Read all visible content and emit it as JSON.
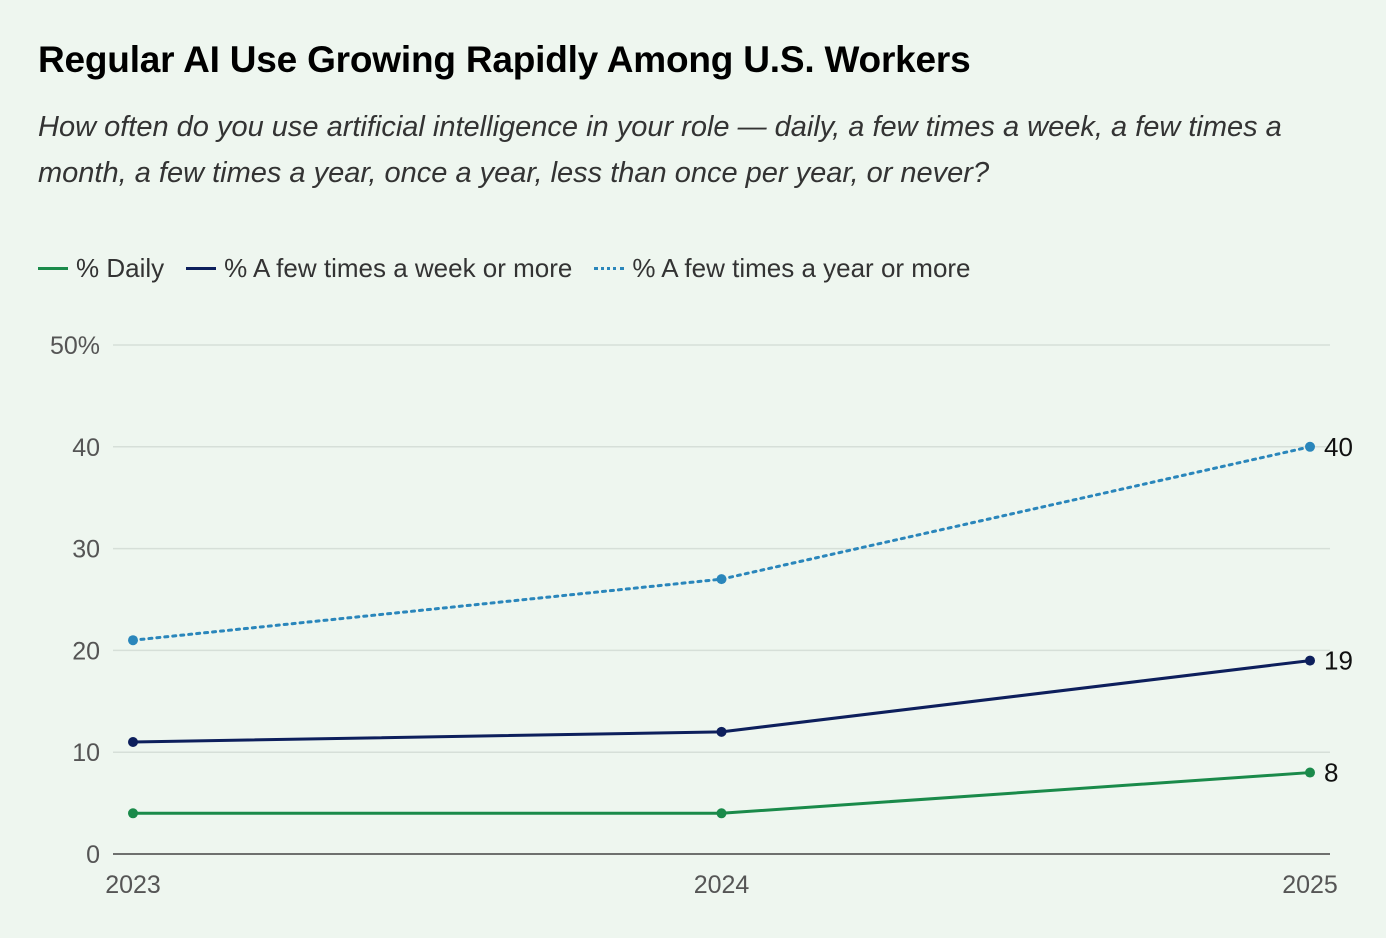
{
  "chart_data": {
    "type": "line",
    "title": "Regular AI Use Growing Rapidly Among U.S. Workers",
    "subtitle": "How often do you use artificial intelligence in your role — daily, a few times a week, a few times a month, a few times a year, once a year, less than once per year, or never?",
    "x": [
      "2023",
      "2024",
      "2025"
    ],
    "y_ticks": [
      {
        "value": 0,
        "label": "0"
      },
      {
        "value": 10,
        "label": "10"
      },
      {
        "value": 20,
        "label": "20"
      },
      {
        "value": 30,
        "label": "30"
      },
      {
        "value": 40,
        "label": "40"
      },
      {
        "value": 50,
        "label": "50%"
      }
    ],
    "ylim": [
      0,
      50
    ],
    "grid": true,
    "legend_position": "top-left",
    "series": [
      {
        "name": "% Daily",
        "values": [
          4,
          4,
          8
        ],
        "end_label": "8",
        "color": "#1a8a4a",
        "style": "solid"
      },
      {
        "name": "% A few times a week or more",
        "values": [
          11,
          12,
          19
        ],
        "end_label": "19",
        "color": "#0d1f5c",
        "style": "solid"
      },
      {
        "name": "% A few times a year or more",
        "values": [
          21,
          27,
          40
        ],
        "end_label": "40",
        "color": "#2a86bb",
        "style": "dotted"
      }
    ]
  }
}
